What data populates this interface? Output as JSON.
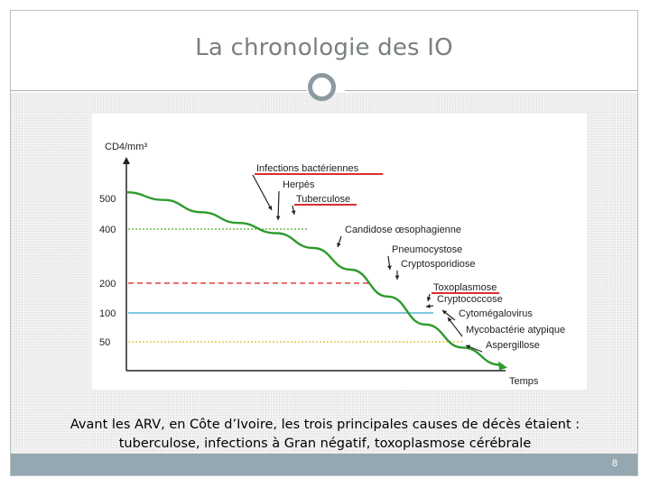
{
  "slide": {
    "title": "La chronologie des IO",
    "caption_line1": "Avant les ARV, en Côte d’Ivoire, les trois principales causes de décès étaient :",
    "caption_line2": "tuberculose, infections à Gran négatif, toxoplasmose cérébrale",
    "page_number": "8",
    "colors": {
      "frame": "#b9bfc2",
      "footer": "#95a7b0",
      "circle": "#8c9aa0",
      "title_text": "#7a7f82"
    }
  },
  "chart_data": {
    "type": "line",
    "ylabel": "CD4/mm³",
    "xlabel": "Temps",
    "y_ticks": [
      500,
      400,
      200,
      100,
      50
    ],
    "ylim": [
      0,
      600
    ],
    "series": [
      {
        "color": "#2e9a2e",
        "x": [
          0,
          0.1,
          0.2,
          0.3,
          0.4,
          0.5,
          0.6,
          0.7,
          0.8,
          0.9,
          1.0
        ],
        "values": [
          520,
          495,
          455,
          420,
          385,
          330,
          250,
          155,
          80,
          40,
          10
        ]
      }
    ],
    "reference_lines": [
      {
        "y": 400,
        "style": "dotted",
        "color": "#6fb84a"
      },
      {
        "y": 200,
        "style": "dashed",
        "color": "#e04040"
      },
      {
        "y": 100,
        "style": "solid",
        "color": "#5ab4d6"
      },
      {
        "y": 50,
        "style": "dotted",
        "color": "#e2c84a"
      }
    ],
    "annotations": [
      {
        "text": "Infections bactériennes",
        "underline": true,
        "underline_color": "#d93030"
      },
      {
        "text": "Herpès",
        "underline": false
      },
      {
        "text": "Tuberculose",
        "underline": true,
        "underline_color": "#d93030"
      },
      {
        "text": "Candidose œsophagienne",
        "underline": false
      },
      {
        "text": "Pneumocystose",
        "underline": false
      },
      {
        "text": "Cryptosporidiose",
        "underline": false
      },
      {
        "text": "Toxoplasmose",
        "underline": true,
        "underline_color": "#d93030"
      },
      {
        "text": "Cryptococcose",
        "underline": false
      },
      {
        "text": "Cytomégalovirus",
        "underline": false
      },
      {
        "text": "Mycobactérie atypique",
        "underline": false
      },
      {
        "text": "Aspergillose",
        "underline": false
      }
    ],
    "grid": false
  }
}
